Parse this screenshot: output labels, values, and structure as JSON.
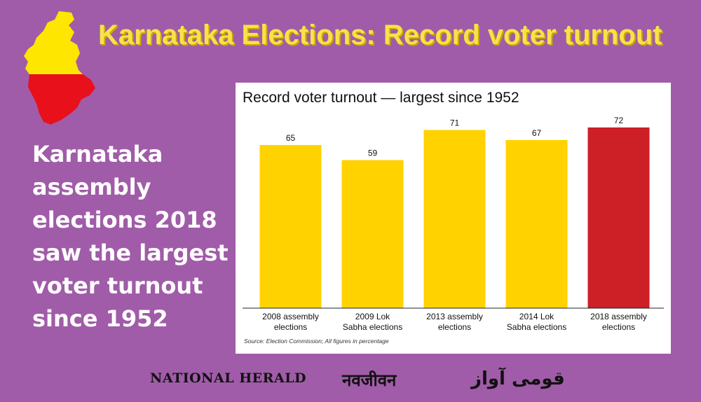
{
  "headline": "Karnataka Elections: Record voter turnout",
  "side_text": "Karnataka assembly elections 2018 saw the largest voter turnout since  1952",
  "card": {
    "title": "Record voter turnout — largest since 1952",
    "source": "Source: Election Commission; All figures in percentage"
  },
  "colors": {
    "background": "#a05ca8",
    "bar": "#ffd200",
    "highlight_bar": "#cc1f26",
    "map_yellow": "#ffe600",
    "map_red": "#e8101b"
  },
  "chart_data": {
    "type": "bar",
    "title": "Record voter turnout — largest since 1952",
    "categories": [
      [
        "2008 assembly",
        "elections"
      ],
      [
        "2009 Lok",
        "Sabha elections"
      ],
      [
        "2013 assembly",
        "elections"
      ],
      [
        "2014 Lok",
        "Sabha elections"
      ],
      [
        "2018 assembly",
        "elections"
      ]
    ],
    "values": [
      65,
      59,
      71,
      67,
      72
    ],
    "data_labels": [
      "65",
      "59",
      "71",
      "67",
      "72"
    ],
    "highlight_index": 4,
    "ylim": [
      0,
      72
    ],
    "xlabel": "",
    "ylabel": "",
    "grid": false,
    "legend": "none"
  },
  "logos": {
    "national_herald": "NATIONAL HERALD",
    "navjivan": "नवजीवन",
    "qaumi_awaz": "قومی آواز"
  }
}
